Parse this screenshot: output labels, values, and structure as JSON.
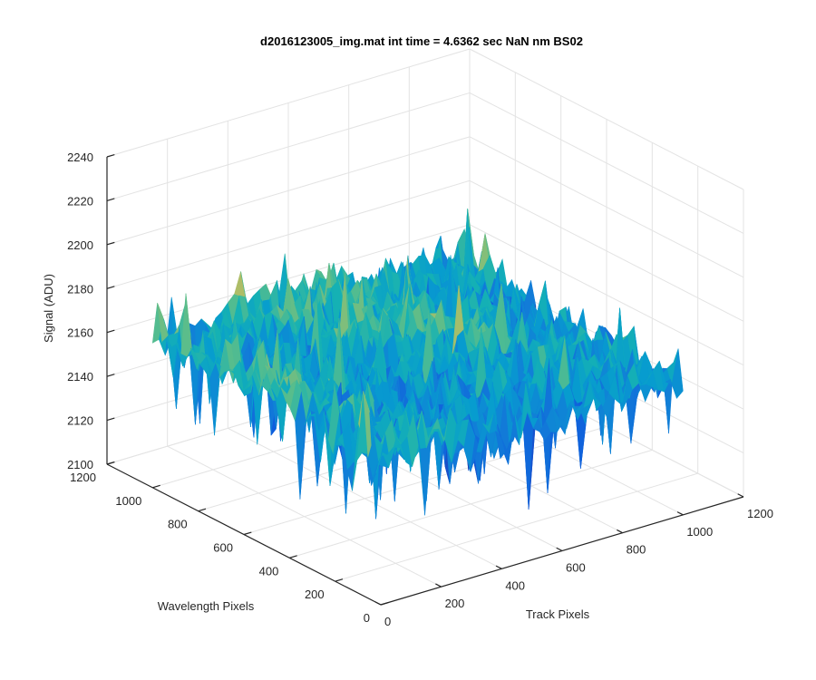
{
  "chart_data": {
    "type": "surface3d",
    "title": "d2016123005_img.mat int time = 4.6362 sec  NaN nm BS02",
    "xlabel": "Track Pixels",
    "ylabel": "Wavelength Pixels",
    "zlabel": "Signal (ADU)",
    "xlim": [
      0,
      1200
    ],
    "ylim": [
      0,
      1200
    ],
    "zlim": [
      2100,
      2240
    ],
    "x_ticks": [
      "0",
      "200",
      "400",
      "600",
      "800",
      "1000",
      "1200"
    ],
    "y_ticks": [
      "0",
      "200",
      "400",
      "600",
      "800",
      "1000",
      "1200"
    ],
    "z_ticks": [
      "2100",
      "2120",
      "2140",
      "2160",
      "2180",
      "2200",
      "2220",
      "2240"
    ],
    "grid": true,
    "colormap": "parula",
    "surface": {
      "x_extent": [
        0,
        1000
      ],
      "y_extent": [
        0,
        1000
      ],
      "mean_signal": 2165,
      "signal_range": [
        2105,
        2215
      ]
    }
  }
}
